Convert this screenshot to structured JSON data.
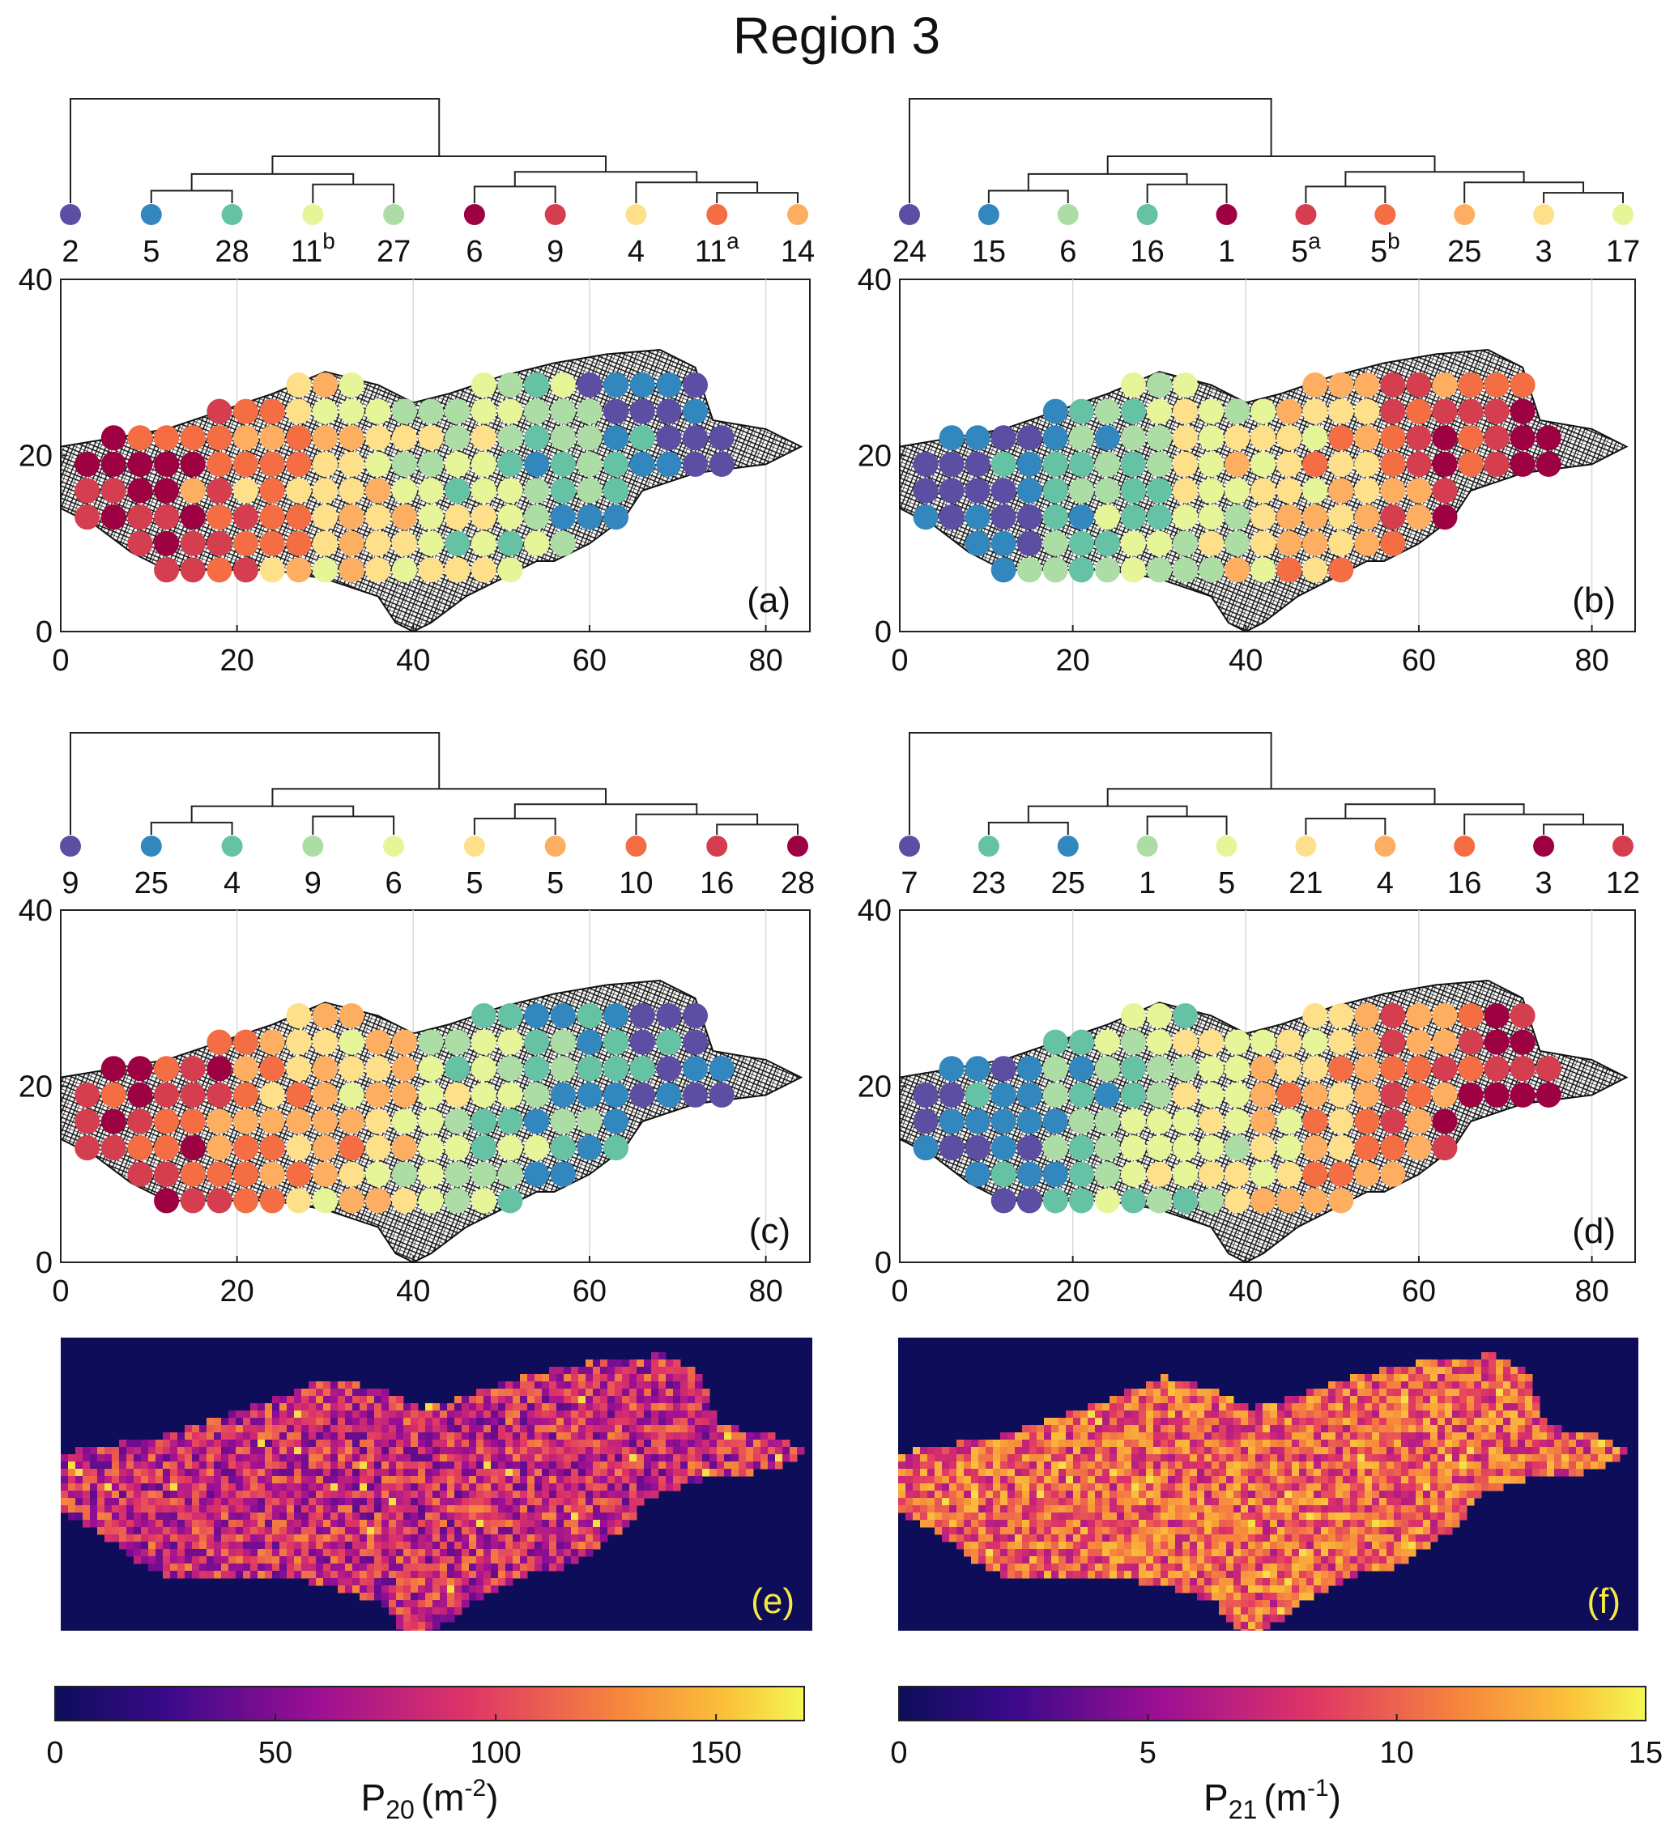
{
  "title": "Region 3",
  "colors": {
    "c1": "#5c4ea3",
    "c2": "#3287be",
    "c3": "#66c2a5",
    "c4": "#abdda4",
    "c5": "#e6f598",
    "c6": "#fee08b",
    "c7": "#fdae61",
    "c8": "#f46d43",
    "c9": "#d53e4f",
    "c10": "#9e0142",
    "background_dark": "#0d0d5a",
    "panel_label_yellow": "#f5ea40"
  },
  "chart_data": [
    {
      "panel": "a",
      "type": "scatter",
      "panel_label": "(a)",
      "xlim": [
        0,
        85
      ],
      "ylim": [
        0,
        40
      ],
      "xticks": [
        "0",
        "20",
        "40",
        "60",
        "80"
      ],
      "yticks": [
        "0",
        "20",
        "40"
      ],
      "grid": "vertical",
      "dendrogram_leaves": [
        {
          "label": "2",
          "sup": "",
          "color": "c1"
        },
        {
          "label": "5",
          "sup": "",
          "color": "c2"
        },
        {
          "label": "28",
          "sup": "",
          "color": "c3"
        },
        {
          "label": "11",
          "sup": "b",
          "color": "c5"
        },
        {
          "label": "27",
          "sup": "",
          "color": "c4"
        },
        {
          "label": "6",
          "sup": "",
          "color": "c10"
        },
        {
          "label": "9",
          "sup": "",
          "color": "c9"
        },
        {
          "label": "4",
          "sup": "",
          "color": "c6"
        },
        {
          "label": "11",
          "sup": "a",
          "color": "c8"
        },
        {
          "label": "14",
          "sup": "",
          "color": "c7"
        }
      ]
    },
    {
      "panel": "b",
      "type": "scatter",
      "panel_label": "(b)",
      "xlim": [
        0,
        85
      ],
      "ylim": [
        0,
        40
      ],
      "xticks": [
        "0",
        "20",
        "40",
        "60",
        "80"
      ],
      "yticks": [
        "0",
        "20",
        "40"
      ],
      "grid": "vertical",
      "dendrogram_leaves": [
        {
          "label": "24",
          "sup": "",
          "color": "c1"
        },
        {
          "label": "15",
          "sup": "",
          "color": "c2"
        },
        {
          "label": "6",
          "sup": "",
          "color": "c4"
        },
        {
          "label": "16",
          "sup": "",
          "color": "c3"
        },
        {
          "label": "1",
          "sup": "",
          "color": "c10"
        },
        {
          "label": "5",
          "sup": "a",
          "color": "c9"
        },
        {
          "label": "5",
          "sup": "b",
          "color": "c8"
        },
        {
          "label": "25",
          "sup": "",
          "color": "c7"
        },
        {
          "label": "3",
          "sup": "",
          "color": "c6"
        },
        {
          "label": "17",
          "sup": "",
          "color": "c5"
        }
      ]
    },
    {
      "panel": "c",
      "type": "scatter",
      "panel_label": "(c)",
      "xlim": [
        0,
        85
      ],
      "ylim": [
        0,
        40
      ],
      "xticks": [
        "0",
        "20",
        "40",
        "60",
        "80"
      ],
      "yticks": [
        "0",
        "20",
        "40"
      ],
      "grid": "vertical",
      "dendrogram_leaves": [
        {
          "label": "9",
          "sup": "",
          "color": "c1"
        },
        {
          "label": "25",
          "sup": "",
          "color": "c2"
        },
        {
          "label": "4",
          "sup": "",
          "color": "c3"
        },
        {
          "label": "9",
          "sup": "",
          "color": "c4"
        },
        {
          "label": "6",
          "sup": "",
          "color": "c5"
        },
        {
          "label": "5",
          "sup": "",
          "color": "c6"
        },
        {
          "label": "5",
          "sup": "",
          "color": "c7"
        },
        {
          "label": "10",
          "sup": "",
          "color": "c8"
        },
        {
          "label": "16",
          "sup": "",
          "color": "c9"
        },
        {
          "label": "28",
          "sup": "",
          "color": "c10"
        }
      ]
    },
    {
      "panel": "d",
      "type": "scatter",
      "panel_label": "(d)",
      "xlim": [
        0,
        85
      ],
      "ylim": [
        0,
        40
      ],
      "xticks": [
        "0",
        "20",
        "40",
        "60",
        "80"
      ],
      "yticks": [
        "0",
        "20",
        "40"
      ],
      "grid": "vertical",
      "dendrogram_leaves": [
        {
          "label": "7",
          "sup": "",
          "color": "c1"
        },
        {
          "label": "23",
          "sup": "",
          "color": "c3"
        },
        {
          "label": "25",
          "sup": "",
          "color": "c2"
        },
        {
          "label": "1",
          "sup": "",
          "color": "c4"
        },
        {
          "label": "5",
          "sup": "",
          "color": "c5"
        },
        {
          "label": "21",
          "sup": "",
          "color": "c6"
        },
        {
          "label": "4",
          "sup": "",
          "color": "c7"
        },
        {
          "label": "16",
          "sup": "",
          "color": "c8"
        },
        {
          "label": "3",
          "sup": "",
          "color": "c10"
        },
        {
          "label": "12",
          "sup": "",
          "color": "c9"
        }
      ]
    },
    {
      "panel": "e",
      "type": "heatmap",
      "panel_label": "(e)",
      "colorbar": {
        "min": 0,
        "max": 170,
        "ticks": [
          "0",
          "50",
          "100",
          "150"
        ],
        "label_main": "P",
        "label_sub": "20",
        "label_unit": "(m",
        "label_exp": "-2",
        "label_close": ")"
      }
    },
    {
      "panel": "f",
      "type": "heatmap",
      "panel_label": "(f)",
      "colorbar": {
        "min": 0,
        "max": 15,
        "ticks": [
          "0",
          "5",
          "10",
          "15"
        ],
        "label_main": "P",
        "label_sub": "21",
        "label_unit": "(m",
        "label_exp": "-1",
        "label_close": ")"
      }
    }
  ]
}
